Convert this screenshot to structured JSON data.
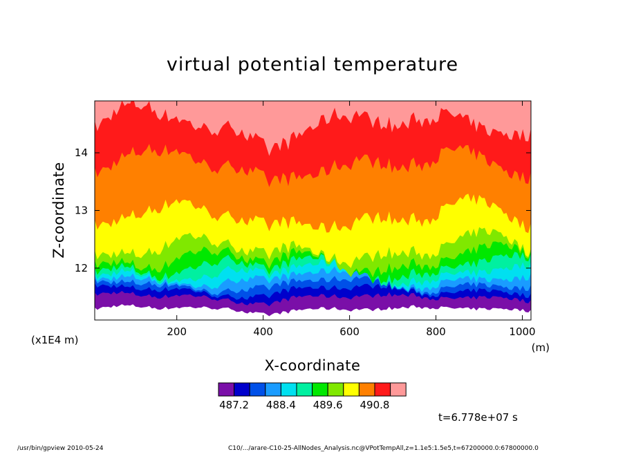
{
  "chart_data": {
    "type": "heatmap",
    "title": "virtual potential temperature",
    "xlabel": "X-coordinate",
    "ylabel": "Z-coordinate",
    "x_unit": "(m)",
    "y_unit": "(x1E4 m)",
    "xlim": [
      10,
      1020
    ],
    "ylim": [
      11.1,
      14.9
    ],
    "x_ticks": [
      200,
      400,
      600,
      800,
      1000
    ],
    "x_tick_labels": [
      "200",
      "400",
      "600",
      "800",
      "1000"
    ],
    "y_ticks": [
      12,
      13,
      14
    ],
    "y_tick_labels": [
      "12",
      "13",
      "14"
    ],
    "colorbar": {
      "colors": [
        "#7a0fa8",
        "#0000cc",
        "#0050e8",
        "#1a9cff",
        "#00e0f0",
        "#00f0a0",
        "#00e800",
        "#80e800",
        "#ffff00",
        "#ff8000",
        "#ff1a1a",
        "#ff9999"
      ],
      "tick_labels": [
        "487.2",
        "488.4",
        "489.6",
        "490.8"
      ]
    },
    "levels_approx_height": [
      {
        "color": "#7a0fa8",
        "base": 11.28
      },
      {
        "color": "#0000cc",
        "base": 11.48
      },
      {
        "color": "#0050e8",
        "base": 11.6
      },
      {
        "color": "#1a9cff",
        "base": 11.7
      },
      {
        "color": "#00e0f0",
        "base": 11.8
      },
      {
        "color": "#00f0a0",
        "base": 11.9
      },
      {
        "color": "#00e800",
        "base": 12.0
      },
      {
        "color": "#80e800",
        "base": 12.12
      },
      {
        "color": "#ffff00",
        "base": 12.3
      },
      {
        "color": "#ff8000",
        "base": 12.85
      },
      {
        "color": "#ff1a1a",
        "base": 13.75
      },
      {
        "color": "#ff9999",
        "base": 14.45
      }
    ],
    "time_label": "t=6.778e+07 s"
  },
  "footer": {
    "left": "/usr/bin/gpview   2010-05-24",
    "right": "C10/.../arare-C10-25-AllNodes_Analysis.nc@VPotTempAll,z=1.1e5:1.5e5,t=67200000.0:67800000.0"
  }
}
